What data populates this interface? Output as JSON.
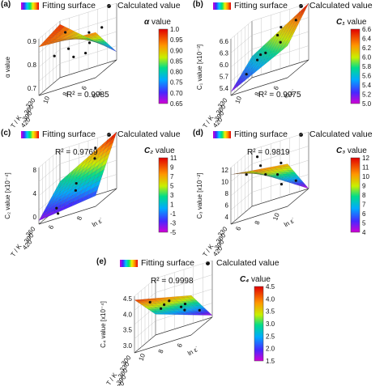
{
  "chart_data": [
    {
      "panel": "(a)",
      "type": "surface3d",
      "legend": {
        "surface": "Fitting surface",
        "points": "Calculated value"
      },
      "colorbar": {
        "title_symbol": "α",
        "title_suffix": "value",
        "ticks": [
          "1.0",
          "0.95",
          "0.90",
          "0.85",
          "0.80",
          "0.75",
          "0.70",
          "0.65"
        ],
        "range": [
          0.65,
          1.0
        ]
      },
      "z_label": "α value",
      "z_ticks": [
        "0.9",
        "0.8",
        "0.7"
      ],
      "temp_label": "T / K",
      "temp_ticks": [
        "330",
        "360",
        "390",
        "420"
      ],
      "rate_label": "ln ε˙",
      "rate_ticks": [
        "10",
        "8",
        "6"
      ],
      "r2": "R² = 0.9985",
      "corners": [
        0.95,
        0.93,
        0.7,
        0.98
      ],
      "points": [
        [
          0.2,
          0.2,
          0.85
        ],
        [
          0.5,
          0.3,
          0.8
        ],
        [
          0.8,
          0.25,
          0.86
        ],
        [
          0.3,
          0.6,
          0.84
        ],
        [
          0.6,
          0.6,
          0.78
        ],
        [
          0.85,
          0.7,
          0.9
        ],
        [
          0.15,
          0.85,
          0.93
        ],
        [
          0.55,
          0.9,
          0.88
        ]
      ]
    },
    {
      "panel": "(b)",
      "type": "surface3d",
      "legend": {
        "surface": "Fitting surface",
        "points": "Calculated value"
      },
      "colorbar": {
        "title_symbol": "C₁",
        "title_suffix": "value",
        "ticks": [
          "6.6",
          "6.4",
          "6.2",
          "6.0",
          "5.8",
          "5.6",
          "5.4",
          "5.2",
          "5.0"
        ],
        "range": [
          5.0,
          6.6
        ]
      },
      "z_label": "C₁ value [x10⁻³]",
      "z_ticks": [
        "6.6",
        "6.3",
        "6.0",
        "5.7",
        "5.4"
      ],
      "temp_label": "T / K",
      "temp_ticks": [
        "330",
        "360",
        "390",
        "420"
      ],
      "rate_label": "ln ε˙",
      "rate_ticks": [
        "10",
        "8",
        "6"
      ],
      "r2": "R² = 0.9975",
      "corners": [
        5.1,
        5.9,
        6.6,
        5.6
      ],
      "points": [
        [
          0.2,
          0.2,
          5.4
        ],
        [
          0.5,
          0.3,
          5.8
        ],
        [
          0.8,
          0.2,
          6.0
        ],
        [
          0.3,
          0.6,
          5.7
        ],
        [
          0.6,
          0.6,
          6.1
        ],
        [
          0.85,
          0.8,
          6.3
        ],
        [
          0.15,
          0.85,
          5.5
        ],
        [
          0.55,
          0.9,
          6.2
        ]
      ]
    },
    {
      "panel": "(c)",
      "type": "surface3d",
      "legend": {
        "surface": "Fitting surface",
        "points": "Calculated value"
      },
      "colorbar": {
        "title_symbol": "C₂",
        "title_suffix": "value",
        "ticks": [
          "11",
          "9",
          "7",
          "5",
          "3",
          "1",
          "-1",
          "-3",
          "-5"
        ],
        "range": [
          -5,
          11
        ]
      },
      "z_label": "C₂ value [x10⁻⁴]",
      "z_ticks": [
        "8",
        "4",
        "0"
      ],
      "temp_label": "T / K",
      "temp_ticks": [
        "360",
        "390",
        "420"
      ],
      "rate_label": "ln ε˙",
      "rate_ticks": [
        "6",
        "8"
      ],
      "r2": "R² = 0.9769",
      "corners": [
        -4,
        -2,
        11,
        2
      ],
      "points": [
        [
          0.2,
          0.3,
          -3
        ],
        [
          0.5,
          0.4,
          0
        ],
        [
          0.8,
          0.5,
          7
        ],
        [
          0.4,
          0.7,
          1
        ],
        [
          0.7,
          0.8,
          9
        ],
        [
          0.3,
          0.1,
          -4
        ]
      ]
    },
    {
      "panel": "(d)",
      "type": "surface3d",
      "legend": {
        "surface": "Fitting surface",
        "points": "Calculated value"
      },
      "colorbar": {
        "title_symbol": "C₃",
        "title_suffix": "value",
        "ticks": [
          "12",
          "11",
          "10",
          "9",
          "8",
          "7",
          "6",
          "5",
          "4"
        ],
        "range": [
          4,
          12
        ]
      },
      "z_label": "C₃ value [x10⁻²]",
      "z_ticks": [
        "12",
        "10",
        "8",
        "6",
        "4"
      ],
      "temp_label": "T / K",
      "temp_ticks": [
        "330",
        "360",
        "390",
        "420"
      ],
      "rate_label": "ln ε˙",
      "rate_ticks": [
        "6",
        "8",
        "10"
      ],
      "r2": "R² = 0.9819",
      "corners": [
        11,
        10,
        4,
        9
      ],
      "points": [
        [
          0.2,
          0.2,
          10
        ],
        [
          0.5,
          0.3,
          9
        ],
        [
          0.8,
          0.25,
          7
        ],
        [
          0.3,
          0.6,
          10
        ],
        [
          0.6,
          0.6,
          8
        ],
        [
          0.85,
          0.8,
          6
        ],
        [
          0.15,
          0.85,
          11
        ],
        [
          0.55,
          0.9,
          9
        ]
      ]
    },
    {
      "panel": "(e)",
      "type": "surface3d",
      "legend": {
        "surface": "Fitting surface",
        "points": "Calculated value"
      },
      "colorbar": {
        "title_symbol": "C₄",
        "title_suffix": "value",
        "ticks": [
          "4.5",
          "4.0",
          "3.5",
          "3.0",
          "2.5",
          "2.0",
          "1.5"
        ],
        "range": [
          1.5,
          4.5
        ]
      },
      "z_label": "C₄ value [x10⁻⁴]",
      "z_ticks": [
        "4.5",
        "4.0",
        "3.5",
        "3.0"
      ],
      "temp_label": "T / K",
      "temp_ticks": [
        "300",
        "330",
        "360",
        "390",
        "420"
      ],
      "rate_label": "ln ε˙",
      "rate_ticks": [
        "10",
        "8",
        "6"
      ],
      "r2": "R² = 0.9998",
      "corners": [
        4.3,
        3.6,
        1.6,
        2.6
      ],
      "points": [
        [
          0.2,
          0.2,
          3.8
        ],
        [
          0.5,
          0.3,
          3.5
        ],
        [
          0.8,
          0.25,
          3.1
        ],
        [
          0.3,
          0.6,
          3.2
        ],
        [
          0.6,
          0.6,
          2.8
        ],
        [
          0.85,
          0.8,
          2.2
        ],
        [
          0.15,
          0.85,
          2.9
        ],
        [
          0.55,
          0.9,
          2.4
        ]
      ]
    }
  ]
}
